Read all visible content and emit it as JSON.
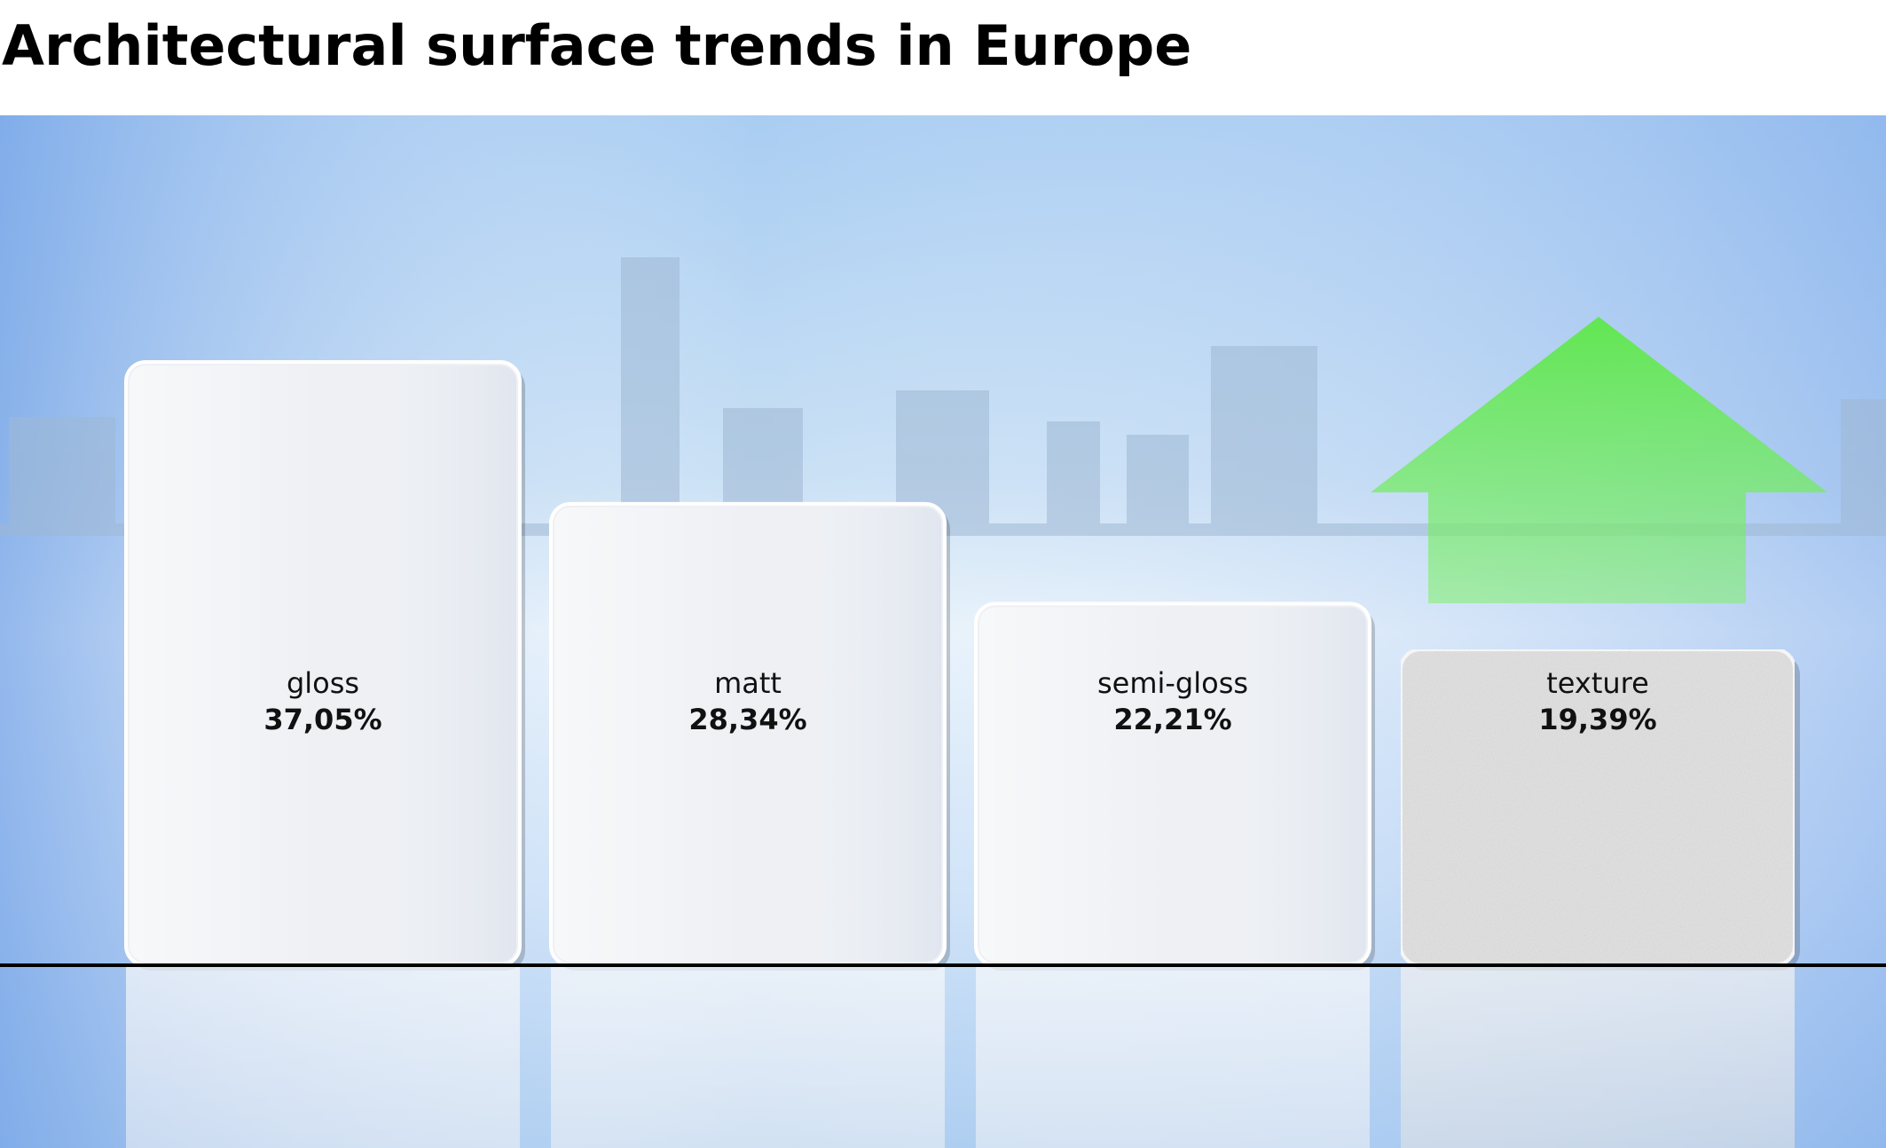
{
  "chart_data": {
    "type": "bar",
    "title": "Architectural surface trends in Europe",
    "categories": [
      "gloss",
      "matt",
      "semi-gloss",
      "texture"
    ],
    "values": [
      37.05,
      28.34,
      22.21,
      19.39
    ],
    "value_labels": [
      "37,05%",
      "28,34%",
      "22,21%",
      "19,39%"
    ],
    "colors": [
      "#eef0f4",
      "#eef0f4",
      "#eef0f4",
      "#e2e2e2"
    ]
  }
}
